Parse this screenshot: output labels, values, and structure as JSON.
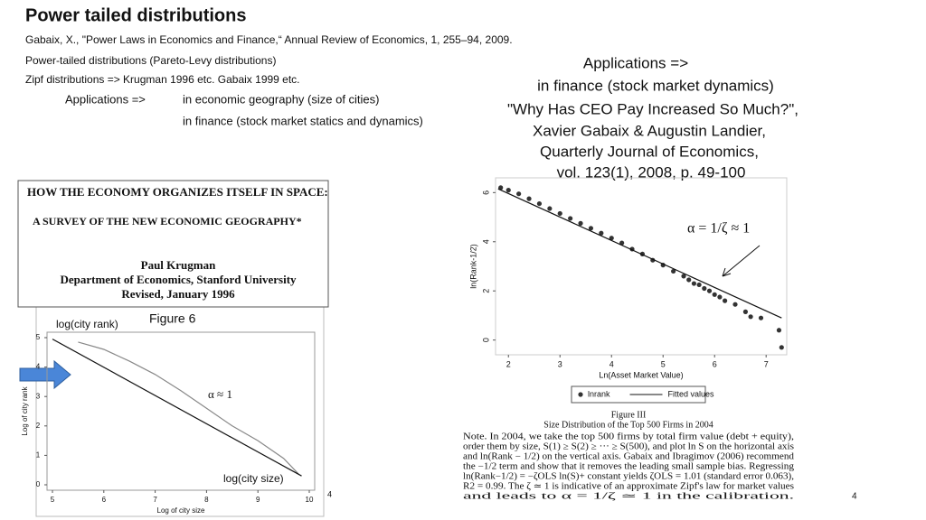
{
  "title": "Power tailed distributions",
  "reference": "Gabaix, X., \"Power Laws in Economics and Finance,“ Annual Review of Economics, 1, 255–94, 2009.",
  "lines": [
    "Power-tailed distributions (Pareto-Levy distributions)",
    "Zipf distributions => Krugman 1996 etc. Gabaix 1999 etc."
  ],
  "applications": {
    "label": "Applications =>",
    "items": [
      "in economic geography (size of cities)",
      "in finance (stock market statics and dynamics)"
    ]
  },
  "right_text": [
    "Applications =>",
    "in finance (stock market dynamics)",
    "\"Why Has CEO Pay Increased So Much?\",",
    "Xavier Gabaix & Augustin Landier,",
    "Quarterly Journal of Economics,",
    "vol. 123(1), 2008, p. 49-100"
  ],
  "krugman": {
    "header": [
      "HOW THE ECONOMY ORGANIZES ITSELF IN SPACE:",
      "A SURVEY OF THE NEW ECONOMIC GEOGRAPHY*"
    ],
    "author": [
      "Paul Krugman",
      "Department of Economics, Stanford University",
      "Revised, January 1996"
    ],
    "figure_label": "Figure 6",
    "annotations": [
      "log(city rank)",
      "log(city size)",
      "α ≈ 1"
    ],
    "page_number": "4",
    "chart": {
      "type": "line",
      "xlabel": "Log of city size",
      "ylabel": "Log of city rank",
      "xlim": [
        5,
        10
      ],
      "ylim": [
        0,
        5
      ],
      "xticks": [
        5,
        6,
        7,
        8,
        9,
        10
      ],
      "yticks": [
        0,
        1,
        2,
        3,
        4,
        5
      ],
      "series": [
        {
          "color": "#888888",
          "x": [
            5.5,
            6,
            6.5,
            7,
            7.5,
            8,
            8.5,
            9,
            9.5,
            9.8
          ],
          "values": [
            4.85,
            4.6,
            4.2,
            3.75,
            3.2,
            2.6,
            2.0,
            1.5,
            0.9,
            0.35
          ]
        },
        {
          "color": "#111111",
          "x": [
            5,
            9.85
          ],
          "values": [
            4.95,
            0.3
          ]
        }
      ]
    }
  },
  "gabaix": {
    "annotation": "α = 1/ζ ≈ 1",
    "figure_number": "Figure III",
    "caption": "Size Distribution of the Top 500 Firms in 2004",
    "note": [
      "Note. In 2004, we take the top 500 firms by total firm value (debt + equity),",
      "order them by size, S(1) ≥ S(2) ≥ ··· ≥ S(500), and plot ln S on the horizontal axis",
      "and ln(Rank − 1/2) on the vertical axis. Gabaix and Ibragimov (2006) recommend",
      "the −1/2 term and show that it removes the leading small sample bias. Regressing",
      "ln(Rank−1/2) = −ζOLS ln(S)+ constant yields ζOLS = 1.01 (standard error 0.063),",
      "R2 = 0.99. The ζ ≃ 1 is indicative of an approximate Zipf's law for market values",
      "and leads to α = 1/ζ ≃ 1 in the calibration."
    ],
    "page_number": "4",
    "chart": {
      "type": "scatter",
      "xlabel": "Ln(Asset Market Value)",
      "ylabel": "ln(Rank-1/2)",
      "xlim": [
        1.75,
        7.4
      ],
      "ylim": [
        -0.6,
        6.6
      ],
      "xticks": [
        2,
        3,
        4,
        5,
        6,
        7
      ],
      "yticks": [
        0,
        2,
        4,
        6
      ],
      "series": [
        {
          "name": "lnrank",
          "type": "scatter",
          "color": "#333333",
          "x": [
            1.85,
            2.0,
            2.2,
            2.4,
            2.6,
            2.8,
            3.0,
            3.2,
            3.4,
            3.6,
            3.8,
            4.0,
            4.2,
            4.4,
            4.6,
            4.8,
            5.0,
            5.2,
            5.4,
            5.5,
            5.6,
            5.7,
            5.8,
            5.9,
            6.0,
            6.1,
            6.2,
            6.4,
            6.6,
            6.7,
            6.9,
            7.25,
            7.3
          ],
          "values": [
            6.2,
            6.1,
            5.95,
            5.75,
            5.55,
            5.35,
            5.15,
            4.95,
            4.75,
            4.55,
            4.35,
            4.15,
            3.95,
            3.7,
            3.5,
            3.25,
            3.05,
            2.8,
            2.6,
            2.45,
            2.3,
            2.25,
            2.1,
            2.0,
            1.85,
            1.75,
            1.6,
            1.45,
            1.15,
            0.95,
            0.9,
            0.4,
            -0.3
          ]
        },
        {
          "name": "Fitted values",
          "type": "line",
          "color": "#111111",
          "x": [
            1.8,
            7.3
          ],
          "values": [
            6.15,
            0.9
          ]
        }
      ]
    }
  }
}
